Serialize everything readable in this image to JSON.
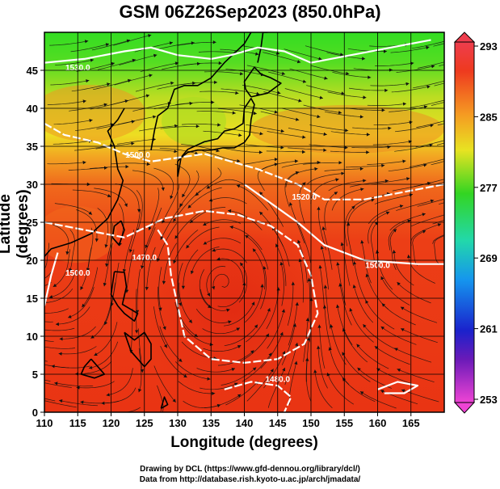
{
  "title": "GSM 06Z26Sep2023 (850.0hPa)",
  "xlabel": "Longitude (degrees)",
  "ylabel": "Latitude  (degrees)",
  "credit_line1": "Drawing by DCL (https://www.gfd-dennou.org/library/dcl/)",
  "credit_line2": "Data from http://database.rish.kyoto-u.ac.jp/arch/jmadata/",
  "x_ticks": [
    "110",
    "115",
    "120",
    "125",
    "130",
    "135",
    "140",
    "145",
    "150",
    "155",
    "160",
    "165"
  ],
  "y_ticks": [
    "0",
    "5",
    "10",
    "15",
    "20",
    "25",
    "30",
    "35",
    "40",
    "45"
  ],
  "colorbar_ticks": [
    "293",
    "285",
    "277",
    "269",
    "261",
    "253"
  ],
  "contour_labels": [
    "1530.0",
    "1500.0",
    "1520.0",
    "1470.0",
    "1480.0",
    "1500.0",
    "1500.0"
  ],
  "chart_data": {
    "type": "heatmap",
    "title": "GSM 06Z26Sep2023 (850.0hPa)",
    "xlabel": "Longitude (degrees)",
    "ylabel": "Latitude  (degrees)",
    "xlim": [
      110,
      170
    ],
    "ylim": [
      0,
      50
    ],
    "colorbar_range": [
      253,
      293
    ],
    "grid": true,
    "colors": {
      "cold": "#e066d8",
      "cool": "#1a55e8",
      "mid": "#22cc33",
      "warm": "#e6dd22",
      "hot": "#ee3311"
    }
  }
}
